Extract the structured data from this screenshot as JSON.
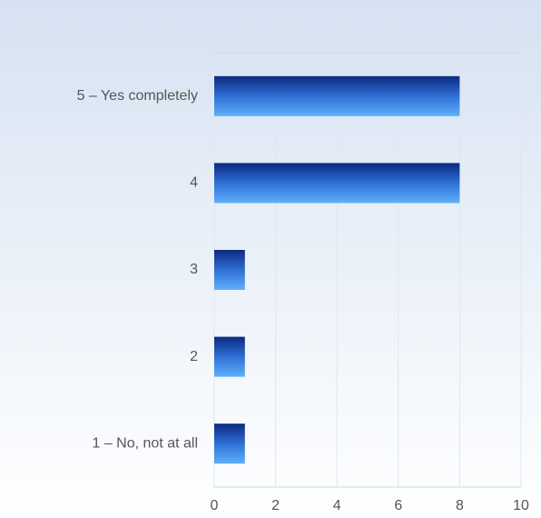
{
  "chart_data": {
    "type": "hbar",
    "categories": [
      "5 – Yes completely",
      "4",
      "3",
      "2",
      "1 – No, not at all"
    ],
    "values": [
      8,
      8,
      1,
      1,
      1
    ],
    "color": "#2f6fd6",
    "xlim": [
      0,
      10
    ],
    "xticks": [
      0,
      2,
      4,
      6,
      8,
      10
    ],
    "grid": true
  }
}
